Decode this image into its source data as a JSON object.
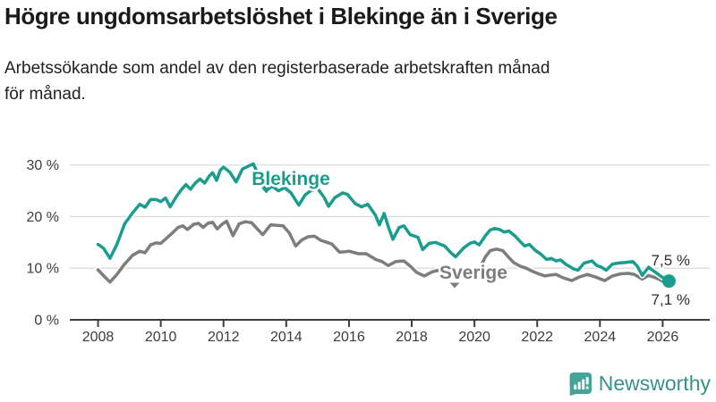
{
  "page": {
    "title": "Högre ungdomsarbetslöshet i Blekinge än i Sverige",
    "subtitle": "Arbetssökande som andel av den registerbaserade arbetskraften månad\nför månad."
  },
  "branding": {
    "logo_text": "Newsworthy",
    "logo_icon": "newsworthy-speech-bubble-bar-chart-icon"
  },
  "colors": {
    "blekinge": "#1a9d8f",
    "sverige": "#7d7d7d",
    "grid": "#d9d9d9",
    "axis": "#3c3c3c",
    "logo_icon": "#46a39a",
    "logo_text": "#37918c"
  },
  "chart_data": {
    "type": "line",
    "title": "Högre ungdomsarbetslöshet i Blekinge än i Sverige",
    "subtitle": "Arbetssökande som andel av den registerbaserade arbetskraften månad för månad.",
    "x_ticks": [
      2008,
      2010,
      2012,
      2014,
      2016,
      2018,
      2020,
      2022,
      2024,
      2026
    ],
    "x_tick_labels": [
      "2008",
      "2010",
      "2012",
      "2014",
      "2016",
      "2018",
      "2020",
      "2022",
      "2024",
      "2026"
    ],
    "y_ticks": [
      0,
      10,
      20,
      30
    ],
    "y_tick_labels": [
      "0 %",
      "10 %",
      "20 %",
      "30 %"
    ],
    "xlim": [
      2007.1,
      2027.5
    ],
    "ylim": [
      0,
      31.5
    ],
    "grid": "horizontal-only",
    "legend": "inline-labels",
    "unit": "percent",
    "series": [
      {
        "name": "Blekinge",
        "color": "#1a9d8f",
        "points": [
          [
            2008.0,
            14.6
          ],
          [
            2008.17,
            13.9
          ],
          [
            2008.38,
            11.9
          ],
          [
            2008.6,
            14.6
          ],
          [
            2008.85,
            18.6
          ],
          [
            2009.1,
            20.7
          ],
          [
            2009.33,
            22.4
          ],
          [
            2009.5,
            21.8
          ],
          [
            2009.67,
            23.3
          ],
          [
            2009.85,
            23.3
          ],
          [
            2010.0,
            22.9
          ],
          [
            2010.15,
            23.6
          ],
          [
            2010.3,
            21.9
          ],
          [
            2010.5,
            23.9
          ],
          [
            2010.67,
            25.3
          ],
          [
            2010.8,
            26.2
          ],
          [
            2010.95,
            25.3
          ],
          [
            2011.1,
            26.5
          ],
          [
            2011.25,
            27.3
          ],
          [
            2011.4,
            26.5
          ],
          [
            2011.55,
            27.9
          ],
          [
            2011.65,
            28.5
          ],
          [
            2011.78,
            27.0
          ],
          [
            2011.9,
            29.0
          ],
          [
            2012.0,
            29.6
          ],
          [
            2012.2,
            28.6
          ],
          [
            2012.4,
            26.7
          ],
          [
            2012.6,
            29.2
          ],
          [
            2012.8,
            29.8
          ],
          [
            2012.95,
            30.2
          ],
          [
            2013.15,
            27.6
          ],
          [
            2013.35,
            25.1
          ],
          [
            2013.55,
            25.9
          ],
          [
            2013.75,
            25.0
          ],
          [
            2013.95,
            25.6
          ],
          [
            2014.15,
            24.6
          ],
          [
            2014.4,
            22.2
          ],
          [
            2014.6,
            24.2
          ],
          [
            2014.8,
            25.1
          ],
          [
            2015.0,
            25.4
          ],
          [
            2015.2,
            23.8
          ],
          [
            2015.35,
            22.0
          ],
          [
            2015.55,
            23.7
          ],
          [
            2015.8,
            24.6
          ],
          [
            2015.95,
            24.3
          ],
          [
            2016.2,
            22.5
          ],
          [
            2016.4,
            21.9
          ],
          [
            2016.6,
            22.4
          ],
          [
            2016.85,
            20.2
          ],
          [
            2016.97,
            18.4
          ],
          [
            2017.12,
            20.6
          ],
          [
            2017.27,
            17.8
          ],
          [
            2017.4,
            15.6
          ],
          [
            2017.6,
            17.9
          ],
          [
            2017.75,
            18.2
          ],
          [
            2017.95,
            16.5
          ],
          [
            2018.2,
            16.0
          ],
          [
            2018.35,
            13.6
          ],
          [
            2018.55,
            14.8
          ],
          [
            2018.75,
            15.0
          ],
          [
            2019.05,
            14.3
          ],
          [
            2019.25,
            13.0
          ],
          [
            2019.4,
            12.2
          ],
          [
            2019.65,
            13.9
          ],
          [
            2019.85,
            14.8
          ],
          [
            2020.0,
            15.1
          ],
          [
            2020.15,
            14.5
          ],
          [
            2020.35,
            16.3
          ],
          [
            2020.5,
            17.4
          ],
          [
            2020.65,
            17.7
          ],
          [
            2020.8,
            17.5
          ],
          [
            2020.95,
            17.0
          ],
          [
            2021.1,
            17.2
          ],
          [
            2021.3,
            16.2
          ],
          [
            2021.45,
            15.2
          ],
          [
            2021.6,
            14.3
          ],
          [
            2021.75,
            14.6
          ],
          [
            2021.95,
            13.4
          ],
          [
            2022.1,
            12.8
          ],
          [
            2022.3,
            11.7
          ],
          [
            2022.45,
            11.9
          ],
          [
            2022.6,
            11.4
          ],
          [
            2022.75,
            11.6
          ],
          [
            2022.9,
            10.8
          ],
          [
            2023.15,
            9.9
          ],
          [
            2023.3,
            9.6
          ],
          [
            2023.5,
            11.0
          ],
          [
            2023.75,
            11.4
          ],
          [
            2023.9,
            10.5
          ],
          [
            2024.05,
            10.2
          ],
          [
            2024.2,
            9.6
          ],
          [
            2024.4,
            10.8
          ],
          [
            2024.6,
            11.0
          ],
          [
            2024.8,
            11.1
          ],
          [
            2025.05,
            11.3
          ],
          [
            2025.2,
            10.3
          ],
          [
            2025.35,
            8.6
          ],
          [
            2025.55,
            10.2
          ],
          [
            2025.75,
            9.3
          ],
          [
            2025.95,
            8.4
          ],
          [
            2026.2,
            7.5
          ]
        ]
      },
      {
        "name": "Sverige",
        "color": "#7d7d7d",
        "points": [
          [
            2008.0,
            9.7
          ],
          [
            2008.2,
            8.4
          ],
          [
            2008.38,
            7.3
          ],
          [
            2008.6,
            8.8
          ],
          [
            2008.85,
            10.8
          ],
          [
            2009.1,
            12.5
          ],
          [
            2009.33,
            13.3
          ],
          [
            2009.5,
            13.0
          ],
          [
            2009.67,
            14.5
          ],
          [
            2009.85,
            14.9
          ],
          [
            2010.0,
            14.8
          ],
          [
            2010.2,
            15.9
          ],
          [
            2010.4,
            17.0
          ],
          [
            2010.55,
            17.9
          ],
          [
            2010.7,
            18.2
          ],
          [
            2010.85,
            17.5
          ],
          [
            2011.05,
            18.5
          ],
          [
            2011.2,
            18.7
          ],
          [
            2011.35,
            17.9
          ],
          [
            2011.5,
            18.7
          ],
          [
            2011.65,
            18.9
          ],
          [
            2011.8,
            17.6
          ],
          [
            2011.95,
            18.5
          ],
          [
            2012.1,
            19.1
          ],
          [
            2012.3,
            16.3
          ],
          [
            2012.5,
            18.6
          ],
          [
            2012.7,
            19.0
          ],
          [
            2012.9,
            18.8
          ],
          [
            2013.05,
            17.8
          ],
          [
            2013.25,
            16.5
          ],
          [
            2013.5,
            18.4
          ],
          [
            2013.7,
            18.3
          ],
          [
            2013.9,
            18.2
          ],
          [
            2014.1,
            16.8
          ],
          [
            2014.3,
            14.3
          ],
          [
            2014.5,
            15.5
          ],
          [
            2014.7,
            16.1
          ],
          [
            2014.9,
            16.2
          ],
          [
            2015.1,
            15.4
          ],
          [
            2015.3,
            15.0
          ],
          [
            2015.45,
            14.7
          ],
          [
            2015.7,
            13.1
          ],
          [
            2015.9,
            13.2
          ],
          [
            2016.0,
            13.3
          ],
          [
            2016.3,
            12.8
          ],
          [
            2016.55,
            12.8
          ],
          [
            2016.85,
            11.7
          ],
          [
            2017.05,
            11.3
          ],
          [
            2017.25,
            10.5
          ],
          [
            2017.5,
            11.3
          ],
          [
            2017.75,
            11.4
          ],
          [
            2017.95,
            10.4
          ],
          [
            2018.15,
            9.2
          ],
          [
            2018.4,
            8.5
          ],
          [
            2018.65,
            9.3
          ],
          [
            2018.85,
            9.6
          ],
          [
            2019.05,
            9.2
          ],
          [
            2019.25,
            8.6
          ],
          [
            2019.4,
            8.1
          ],
          [
            2019.6,
            8.5
          ],
          [
            2019.8,
            8.9
          ],
          [
            2020.0,
            9.3
          ],
          [
            2020.15,
            9.8
          ],
          [
            2020.35,
            12.2
          ],
          [
            2020.5,
            13.4
          ],
          [
            2020.7,
            13.7
          ],
          [
            2020.9,
            13.4
          ],
          [
            2021.05,
            12.4
          ],
          [
            2021.25,
            11.1
          ],
          [
            2021.45,
            10.4
          ],
          [
            2021.65,
            10.0
          ],
          [
            2021.85,
            9.4
          ],
          [
            2022.05,
            8.9
          ],
          [
            2022.25,
            8.5
          ],
          [
            2022.45,
            8.7
          ],
          [
            2022.6,
            8.8
          ],
          [
            2022.8,
            8.2
          ],
          [
            2023.1,
            7.6
          ],
          [
            2023.35,
            8.3
          ],
          [
            2023.6,
            8.8
          ],
          [
            2023.85,
            8.3
          ],
          [
            2024.15,
            7.6
          ],
          [
            2024.4,
            8.5
          ],
          [
            2024.65,
            8.9
          ],
          [
            2024.9,
            9.0
          ],
          [
            2025.1,
            8.8
          ],
          [
            2025.35,
            7.9
          ],
          [
            2025.55,
            8.6
          ],
          [
            2025.8,
            8.1
          ],
          [
            2026.0,
            7.5
          ],
          [
            2026.2,
            7.1
          ]
        ]
      }
    ],
    "end_labels": [
      {
        "series": "Blekinge",
        "text": "7,5 %",
        "value": 7.5
      },
      {
        "series": "Sverige",
        "text": "7,1 %",
        "value": 7.1
      }
    ],
    "end_marker": {
      "series": "Blekinge",
      "x": 2026.2,
      "y": 7.5
    }
  }
}
